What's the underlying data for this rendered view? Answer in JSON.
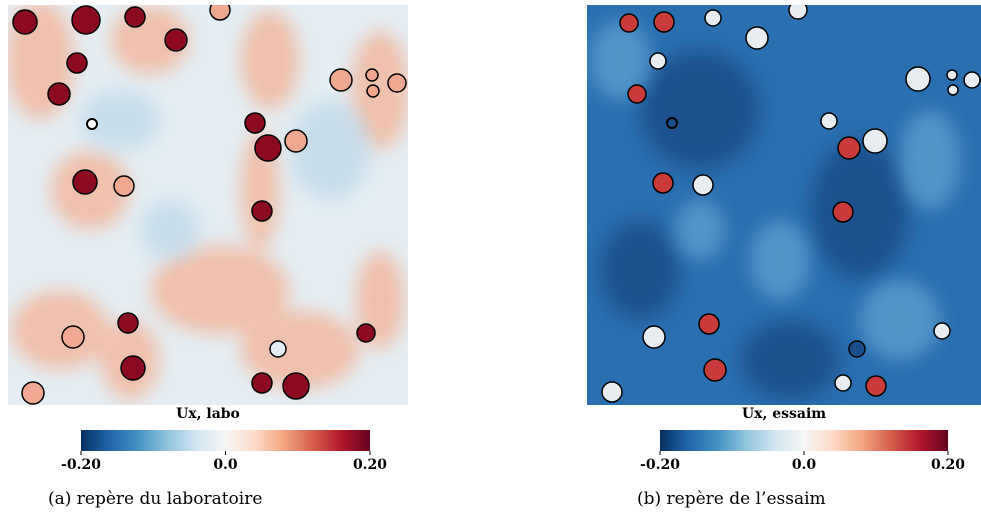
{
  "panels": [
    {
      "field_label": "Ux, labo",
      "colorbar": {
        "lim": [
          -0.2,
          0.2
        ],
        "ticks": [
          {
            "value": -0.2,
            "label": "-0.20"
          },
          {
            "value": 0,
            "label": "0.0"
          },
          {
            "value": 0.2,
            "label": "0.20"
          }
        ]
      },
      "caption": "(a) repère du laboratoire"
    },
    {
      "field_label": "Ux, essaim",
      "colorbar": {
        "lim": [
          -0.2,
          0.2
        ],
        "ticks": [
          {
            "value": -0.2,
            "label": "-0.20"
          },
          {
            "value": 0,
            "label": "0.0"
          },
          {
            "value": 0.2,
            "label": "0.20"
          }
        ]
      },
      "caption": "(b) repère de l’essaim"
    }
  ]
}
